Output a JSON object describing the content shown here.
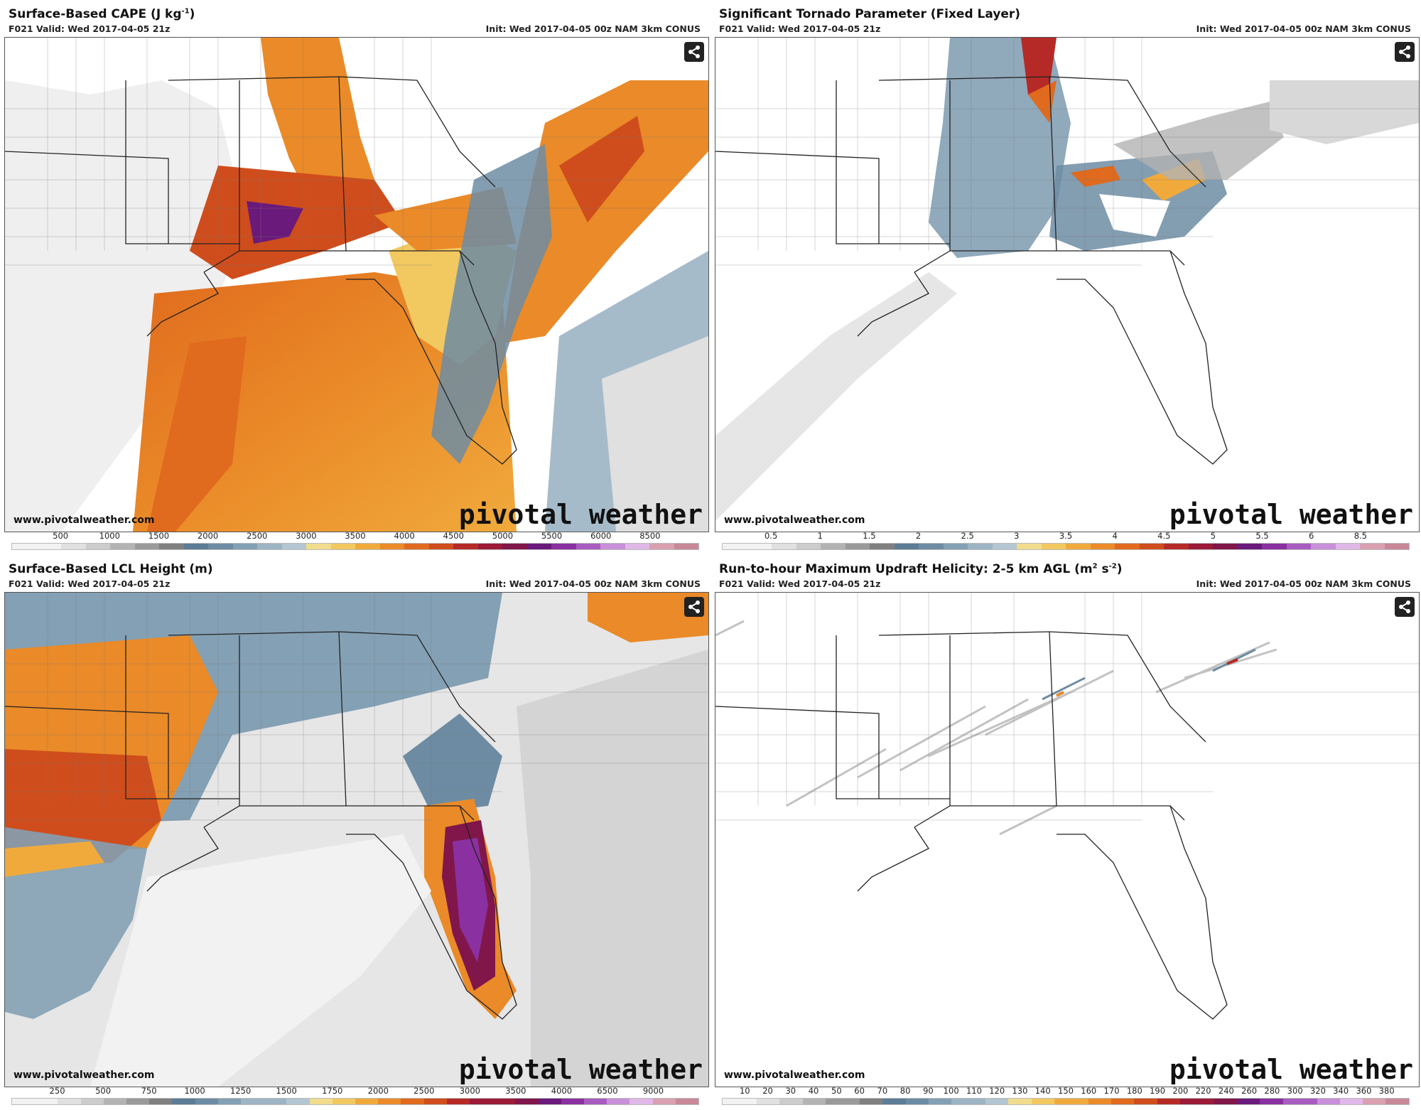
{
  "panels": [
    {
      "title": "Surface-Based CAPE (J kg",
      "title_sup": "-1",
      "title_end": ")",
      "valid": "F021 Valid: Wed 2017-04-05 21z",
      "init": "Init: Wed 2017-04-05 00z NAM 3km CONUS",
      "website": "www.pivotalweather.com",
      "brand": "pivotal weather",
      "colorbar_ticks": [
        "500",
        "1000",
        "1500",
        "2000",
        "2500",
        "3000",
        "3500",
        "4000",
        "4500",
        "5000",
        "5500",
        "6000",
        "8500"
      ],
      "field": "cape"
    },
    {
      "title": "Significant Tornado Parameter (Fixed Layer)",
      "title_sup": "",
      "title_end": "",
      "valid": "F021 Valid: Wed 2017-04-05 21z",
      "init": "Init: Wed 2017-04-05 00z NAM 3km CONUS",
      "website": "www.pivotalweather.com",
      "brand": "pivotal weather",
      "colorbar_ticks": [
        "0.5",
        "1",
        "1.5",
        "2",
        "2.5",
        "3",
        "3.5",
        "4",
        "4.5",
        "5",
        "5.5",
        "6",
        "8.5"
      ],
      "field": "stp"
    },
    {
      "title": "Surface-Based LCL Height (m)",
      "title_sup": "",
      "title_end": "",
      "valid": "F021 Valid: Wed 2017-04-05 21z",
      "init": "Init: Wed 2017-04-05 00z NAM 3km CONUS",
      "website": "www.pivotalweather.com",
      "brand": "pivotal weather",
      "colorbar_ticks": [
        "250",
        "500",
        "750",
        "1000",
        "1250",
        "1500",
        "1750",
        "2000",
        "2500",
        "3000",
        "3500",
        "4000",
        "6500",
        "9000"
      ],
      "field": "lcl"
    },
    {
      "title": "Run-to-hour Maximum Updraft Helicity: 2-5 km AGL (m",
      "title_sup": "2",
      "title_end": " s",
      "title_sup2": "-2",
      "title_end2": ")",
      "valid": "F021 Valid: Wed 2017-04-05 21z",
      "init": "Init: Wed 2017-04-05 00z NAM 3km CONUS",
      "website": "www.pivotalweather.com",
      "brand": "pivotal weather",
      "colorbar_ticks": [
        "10",
        "20",
        "30",
        "40",
        "50",
        "60",
        "70",
        "80",
        "90",
        "100",
        "110",
        "120",
        "130",
        "140",
        "150",
        "160",
        "170",
        "180",
        "190",
        "200",
        "220",
        "240",
        "260",
        "280",
        "300",
        "320",
        "340",
        "360",
        "380"
      ],
      "field": "uh"
    }
  ],
  "colors": {
    "grays": [
      "#f2f2f2",
      "#e0e0e0",
      "#cccccc",
      "#b3b3b3",
      "#9a9a9a",
      "#808080"
    ],
    "blues": [
      "#5d7c96",
      "#6d8ca3",
      "#84a0b4",
      "#9cb4c4",
      "#b4c6d2"
    ],
    "yellows": [
      "#f0dc8c",
      "#f2c860",
      "#f0aa3c"
    ],
    "oranges": [
      "#ea8a28",
      "#e06a1e",
      "#cf4d1c"
    ],
    "reds": [
      "#b52a26",
      "#9a1a38",
      "#80164a"
    ],
    "purples": [
      "#6a1a7a",
      "#8a30a0",
      "#a85cc0",
      "#c890d8",
      "#e0b8e8"
    ],
    "pinks": [
      "#d8a0b0",
      "#c88898"
    ]
  }
}
